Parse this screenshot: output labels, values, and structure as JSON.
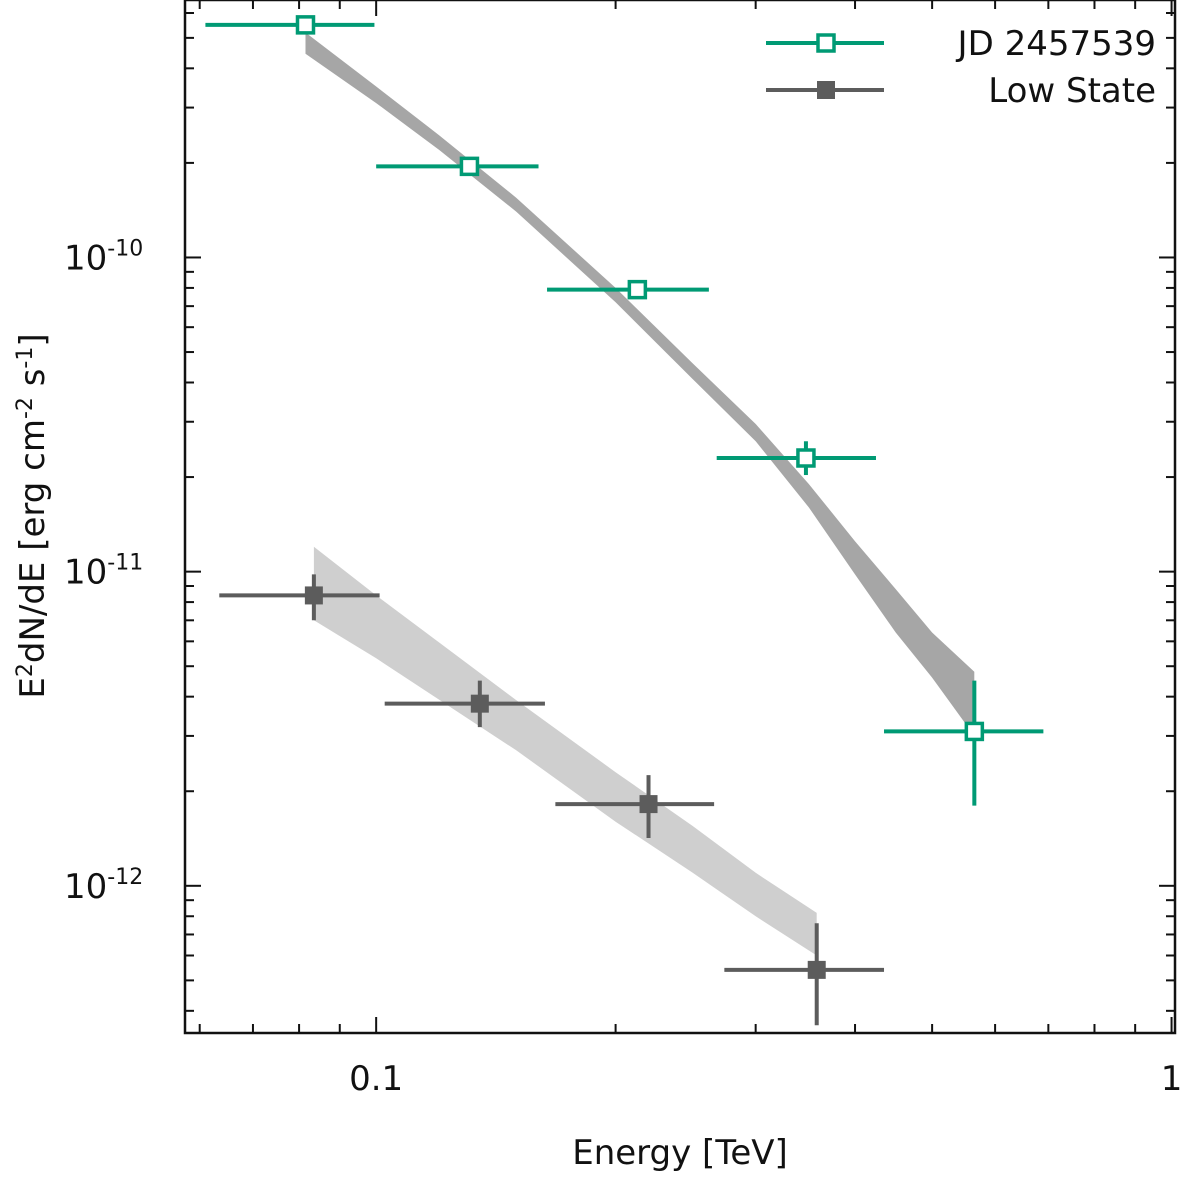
{
  "chart_data": {
    "type": "scatter",
    "title": "",
    "xlabel": "Energy [TeV]",
    "ylabel": {
      "base": "E",
      "base_sup": "2",
      "mid": "dN/dE [erg cm",
      "mid_sup": "-2",
      "end": " s",
      "end_sup": "-1",
      "close": "]"
    },
    "xscale": "log",
    "yscale": "log",
    "xlim": [
      0.0575,
      1.01
    ],
    "ylim": [
      3.4e-13,
      6.6e-10
    ],
    "x_ticks": [
      {
        "value": 0.1,
        "label": "0.1"
      },
      {
        "value": 1,
        "label": "1"
      }
    ],
    "y_ticks": [
      {
        "value": 1e-10,
        "base": "10",
        "exp": "-10"
      },
      {
        "value": 1e-11,
        "base": "10",
        "exp": "-11"
      },
      {
        "value": 1e-12,
        "base": "10",
        "exp": "-12"
      }
    ],
    "legend_position": "top-right",
    "colors": {
      "flare": "#009a74",
      "low": "#5c5c5c",
      "flare_band": "#a6a6a6",
      "low_band": "#cfcfcf",
      "axis": "#111111"
    },
    "series": [
      {
        "name": "JD 2457539",
        "marker": "open-square",
        "color": "#009a74",
        "points": [
          {
            "x": 0.0815,
            "y": 5.5e-10,
            "xlo": 0.061,
            "xhi": 0.0995,
            "ylo": 5.2e-10,
            "yhi": 5.85e-10
          },
          {
            "x": 0.131,
            "y": 1.95e-10,
            "xlo": 0.1,
            "xhi": 0.16,
            "ylo": 1.86e-10,
            "yhi": 2.04e-10
          },
          {
            "x": 0.213,
            "y": 7.9e-11,
            "xlo": 0.164,
            "xhi": 0.262,
            "ylo": 7.45e-11,
            "yhi": 8.35e-11
          },
          {
            "x": 0.347,
            "y": 2.3e-11,
            "xlo": 0.268,
            "xhi": 0.425,
            "ylo": 2.03e-11,
            "yhi": 2.6e-11
          },
          {
            "x": 0.565,
            "y": 3.1e-12,
            "xlo": 0.435,
            "xhi": 0.69,
            "ylo": 1.8e-12,
            "yhi": 4.5e-12
          }
        ]
      },
      {
        "name": "Low State",
        "marker": "filled-square",
        "color": "#5c5c5c",
        "points": [
          {
            "x": 0.0835,
            "y": 8.4e-12,
            "xlo": 0.0635,
            "xhi": 0.101,
            "ylo": 7e-12,
            "yhi": 9.8e-12
          },
          {
            "x": 0.135,
            "y": 3.8e-12,
            "xlo": 0.1025,
            "xhi": 0.163,
            "ylo": 3.2e-12,
            "yhi": 4.5e-12
          },
          {
            "x": 0.22,
            "y": 1.82e-12,
            "xlo": 0.168,
            "xhi": 0.266,
            "ylo": 1.42e-12,
            "yhi": 2.25e-12
          },
          {
            "x": 0.358,
            "y": 5.4e-13,
            "xlo": 0.274,
            "xhi": 0.435,
            "ylo": 3.6e-13,
            "yhi": 7.6e-13
          }
        ]
      }
    ],
    "bands": [
      {
        "name": "JD 2457539 model band",
        "color": "#a6a6a6",
        "x": [
          0.0815,
          0.1,
          0.12,
          0.15,
          0.2,
          0.25,
          0.3,
          0.35,
          0.4,
          0.45,
          0.5,
          0.565
        ],
        "low": [
          4.45e-10,
          3.1e-10,
          2.2e-10,
          1.4e-10,
          7.2e-11,
          4.1e-11,
          2.6e-11,
          1.6e-11,
          9.8e-12,
          6.4e-12,
          4.6e-12,
          3e-12
        ],
        "high": [
          5.2e-10,
          3.5e-10,
          2.45e-10,
          1.55e-10,
          8e-11,
          4.6e-11,
          2.95e-11,
          1.9e-11,
          1.25e-11,
          8.8e-12,
          6.4e-12,
          4.8e-12
        ]
      },
      {
        "name": "Low State model band",
        "color": "#cfcfcf",
        "x": [
          0.0835,
          0.1,
          0.15,
          0.2,
          0.25,
          0.3,
          0.358
        ],
        "low": [
          7e-12,
          5.3e-12,
          2.7e-12,
          1.6e-12,
          1.1e-12,
          8e-13,
          6e-13
        ],
        "high": [
          1.2e-11,
          8.4e-12,
          3.9e-12,
          2.3e-12,
          1.55e-12,
          1.1e-12,
          8.2e-13
        ]
      }
    ]
  }
}
